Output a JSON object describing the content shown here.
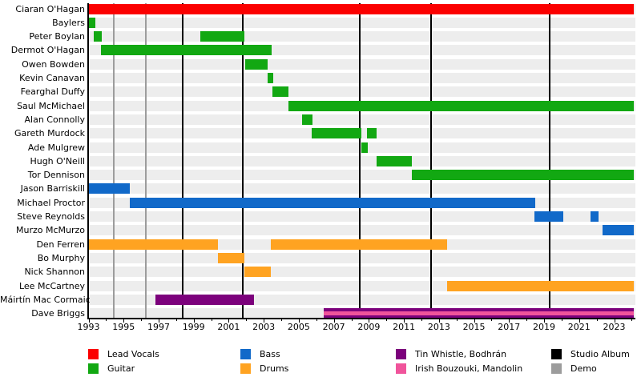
{
  "chart_data": {
    "type": "timeline",
    "description": "Band members timeline (Gantt-style) with album and demo release markers",
    "x_axis": {
      "min": 1993,
      "max": 2024.2,
      "tick_label_years": [
        1993,
        1995,
        1997,
        1999,
        2001,
        2003,
        2005,
        2007,
        2009,
        2011,
        2013,
        2015,
        2017,
        2019,
        2021,
        2023
      ],
      "minor_tick_step_years": 1,
      "grid": false
    },
    "colors": {
      "red": "#fb0000",
      "green": "#12a812",
      "blue": "#1169c9",
      "orange": "#ffa321",
      "purple": "#7c017c",
      "pink": "#f0549b",
      "black": "#000000",
      "gray": "#9c9c9c"
    },
    "legend": [
      {
        "label": "Lead Vocals",
        "color": "red"
      },
      {
        "label": "Guitar",
        "color": "green"
      },
      {
        "label": "Bass",
        "color": "blue"
      },
      {
        "label": "Drums",
        "color": "orange"
      },
      {
        "label": "Tin Whistle, Bodhrán",
        "color": "purple"
      },
      {
        "label": "Irish Bouzouki, Mandolin",
        "color": "pink"
      },
      {
        "label": "Studio Album",
        "color": "black"
      },
      {
        "label": "Demo",
        "color": "gray"
      }
    ],
    "legend_position": "bottom",
    "members": [
      {
        "name": "Ciaran O'Hagan",
        "instrument": "Lead Vocals",
        "color": "red",
        "periods": [
          [
            1993.0,
            2024.1
          ]
        ]
      },
      {
        "name": "Baylers",
        "instrument": "Guitar",
        "color": "green",
        "periods": [
          [
            1993.0,
            1993.4
          ]
        ]
      },
      {
        "name": "Peter Boylan",
        "instrument": "Guitar",
        "color": "green",
        "periods": [
          [
            1993.3,
            1993.75
          ],
          [
            1999.4,
            2001.9
          ]
        ]
      },
      {
        "name": "Dermot O'Hagan",
        "instrument": "Guitar",
        "color": "green",
        "periods": [
          [
            1993.7,
            2003.45
          ]
        ]
      },
      {
        "name": "Owen Bowden",
        "instrument": "Guitar",
        "color": "green",
        "periods": [
          [
            2001.95,
            2003.2
          ]
        ]
      },
      {
        "name": "Kevin Canavan",
        "instrument": "Guitar",
        "color": "green",
        "periods": [
          [
            2003.2,
            2003.55
          ]
        ]
      },
      {
        "name": "Fearghal Duffy",
        "instrument": "Guitar",
        "color": "green",
        "periods": [
          [
            2003.5,
            2004.4
          ]
        ]
      },
      {
        "name": "Saul McMichael",
        "instrument": "Guitar",
        "color": "green",
        "periods": [
          [
            2004.4,
            2024.1
          ]
        ]
      },
      {
        "name": "Alan Connolly",
        "instrument": "Guitar",
        "color": "green",
        "periods": [
          [
            2005.2,
            2005.8
          ]
        ]
      },
      {
        "name": "Gareth Murdock",
        "instrument": "Guitar",
        "color": "green",
        "periods": [
          [
            2005.75,
            2008.55
          ],
          [
            2008.9,
            2009.45
          ]
        ]
      },
      {
        "name": "Ade Mulgrew",
        "instrument": "Guitar",
        "color": "green",
        "periods": [
          [
            2008.55,
            2008.95
          ]
        ]
      },
      {
        "name": "Hugh O'Neill",
        "instrument": "Guitar",
        "color": "green",
        "periods": [
          [
            2009.45,
            2011.45
          ]
        ]
      },
      {
        "name": "Tor Dennison",
        "instrument": "Guitar",
        "color": "green",
        "periods": [
          [
            2011.45,
            2024.1
          ]
        ]
      },
      {
        "name": "Jason Barriskill",
        "instrument": "Bass",
        "color": "blue",
        "periods": [
          [
            1993.0,
            1995.35
          ]
        ]
      },
      {
        "name": "Michael Proctor",
        "instrument": "Bass",
        "color": "blue",
        "periods": [
          [
            1995.35,
            2018.5
          ]
        ]
      },
      {
        "name": "Steve Reynolds",
        "instrument": "Bass",
        "color": "blue",
        "periods": [
          [
            2018.45,
            2020.1
          ],
          [
            2021.65,
            2022.1
          ]
        ]
      },
      {
        "name": "Murzo McMurzo",
        "instrument": "Bass",
        "color": "blue",
        "periods": [
          [
            2022.35,
            2024.1
          ]
        ]
      },
      {
        "name": "Den Ferren",
        "instrument": "Drums",
        "color": "orange",
        "periods": [
          [
            1993.0,
            2000.4
          ],
          [
            2003.4,
            2013.45
          ]
        ]
      },
      {
        "name": "Bo Murphy",
        "instrument": "Drums",
        "color": "orange",
        "periods": [
          [
            2000.4,
            2001.9
          ]
        ]
      },
      {
        "name": "Nick Shannon",
        "instrument": "Drums",
        "color": "orange",
        "periods": [
          [
            2001.9,
            2003.4
          ]
        ]
      },
      {
        "name": "Lee McCartney",
        "instrument": "Drums",
        "color": "orange",
        "periods": [
          [
            2013.45,
            2024.1
          ]
        ]
      },
      {
        "name": "Máirtín Mac Cormaic",
        "instrument": "Tin Whistle, Bodhrán",
        "color": "purple",
        "periods": [
          [
            1996.8,
            2002.45
          ]
        ]
      },
      {
        "name": "Dave Briggs",
        "instrument": "Tin Whistle, Bodhrán, Irish Bouzouki, Mandolin",
        "color": "purple_pink",
        "periods": [
          [
            2006.4,
            2024.1
          ]
        ]
      }
    ],
    "events": {
      "studio_albums_years": [
        1998.37,
        2001.8,
        2008.46,
        2012.55,
        2019.32
      ],
      "demos_years": [
        1994.44,
        1996.27
      ]
    }
  }
}
